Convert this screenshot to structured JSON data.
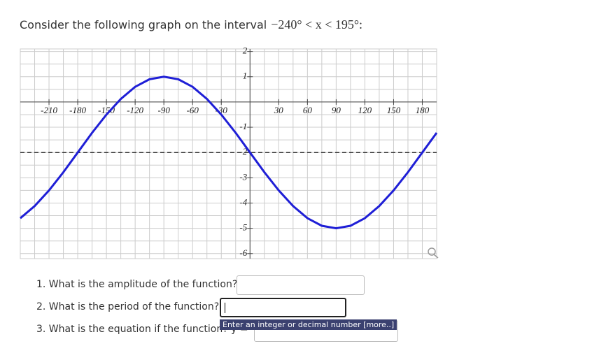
{
  "prompt": {
    "text": "Consider the following graph on the interval",
    "math": "−240° < x < 195°:"
  },
  "chart_data": {
    "type": "line",
    "x": [
      -240,
      -225,
      -210,
      -195,
      -180,
      -165,
      -150,
      -135,
      -120,
      -105,
      -90,
      -75,
      -60,
      -45,
      -30,
      -15,
      0,
      15,
      30,
      45,
      60,
      75,
      90,
      105,
      120,
      135,
      150,
      165,
      180,
      195
    ],
    "series": [
      {
        "color": "#1f1fd6",
        "values": [
          -4.6,
          -4.12,
          -3.5,
          -2.78,
          -2,
          -1.22,
          -0.5,
          0.12,
          0.6,
          0.9,
          1,
          0.9,
          0.6,
          0.12,
          -0.5,
          -1.22,
          -2,
          -2.78,
          -3.5,
          -4.12,
          -4.6,
          -4.9,
          -5,
          -4.9,
          -4.6,
          -4.12,
          -3.5,
          -2.78,
          -2,
          -1.22
        ]
      }
    ],
    "xlim": [
      -240,
      195
    ],
    "ylim": [
      -6.2,
      2.1
    ],
    "xticks": [
      -210,
      -180,
      -150,
      -120,
      -90,
      -60,
      -30,
      30,
      60,
      90,
      120,
      150,
      180
    ],
    "yticks": [
      2,
      1,
      -1,
      -2,
      -3,
      -4,
      -5,
      -6
    ],
    "x_grid_step": 15,
    "y_grid_step": 0.5,
    "dashed_line_y": -2,
    "grid": true
  },
  "questions": [
    "1. What is the amplitude of the function?",
    "2. What is the period of the function?",
    "3. What is the equation if the function? y ="
  ],
  "tooltip": "Enter an integer or decimal number [more..]"
}
